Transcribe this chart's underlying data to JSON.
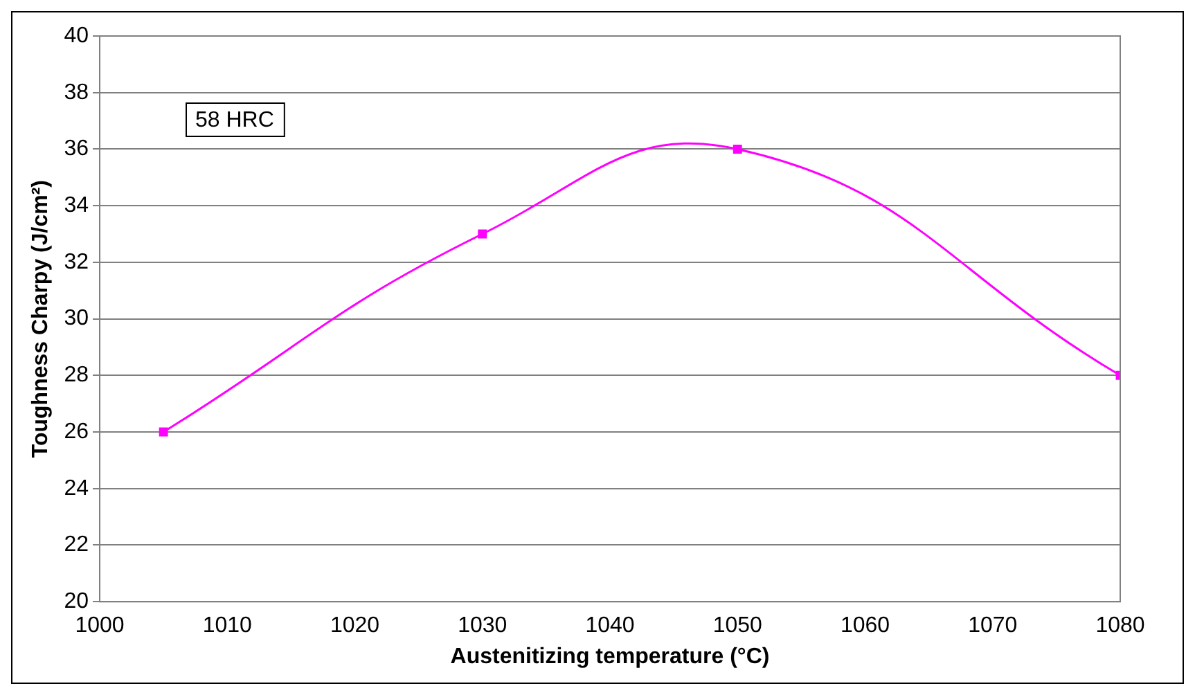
{
  "chart_data": {
    "type": "line",
    "xlabel": "Austenitizing temperature (°C)",
    "ylabel": "Toughness Charpy (J/cm²)",
    "x": [
      1005,
      1030,
      1050,
      1080
    ],
    "series": [
      {
        "color": "#ff00ff",
        "values": [
          26,
          33,
          36,
          28
        ]
      }
    ],
    "xlim": [
      1000,
      1080
    ],
    "xticks": [
      1000,
      1010,
      1020,
      1030,
      1040,
      1050,
      1060,
      1070,
      1080
    ],
    "ylim": [
      20,
      40
    ],
    "yticks": [
      20,
      22,
      24,
      26,
      28,
      30,
      32,
      34,
      36,
      38,
      40
    ],
    "grid": "y",
    "legend": false,
    "marker": "square",
    "line_style": "solid",
    "annotations": [
      "58 HRC"
    ]
  }
}
